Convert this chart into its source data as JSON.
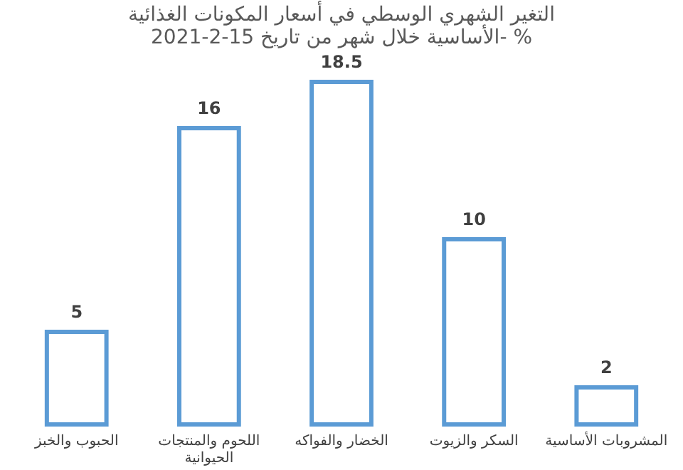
{
  "chart_data": {
    "type": "bar",
    "title": "التغير الشهري الوسطي في أسعار المكونات الغذائية\nالأساسية خلال شهر من تاريخ 15-2-2021- %",
    "categories": [
      "الحبوب والخبز",
      "اللحوم والمنتجات الحيوانية",
      "الخضار والفواكه",
      "السكر والزيوت",
      "المشروبات الأساسية"
    ],
    "values": [
      5,
      16,
      18.5,
      10,
      2
    ],
    "color": "#5b9bd5",
    "data_labels": true,
    "grid": false
  }
}
